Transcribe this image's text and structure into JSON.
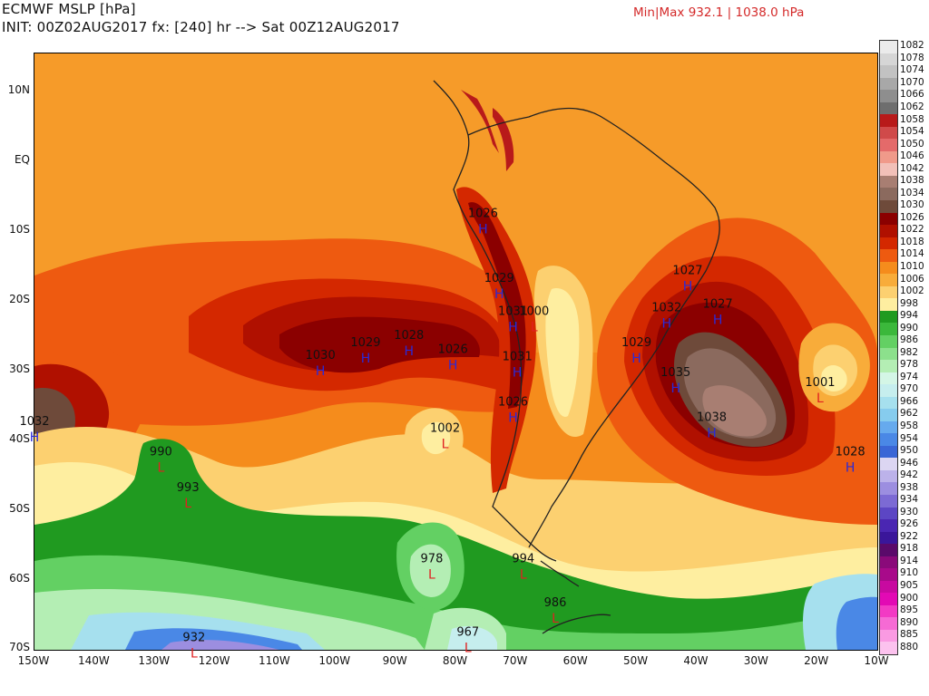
{
  "header": {
    "title": "ECMWF MSLP [hPa]",
    "init_line": "INIT: 00Z02AUG2017 fx: [240] hr --> Sat 00Z12AUG2017",
    "minmax": "Min|Max 932.1 | 1038.0 hPa"
  },
  "axes": {
    "y_ticks": [
      "10N",
      "EQ",
      "10S",
      "20S",
      "30S",
      "40S",
      "50S",
      "60S",
      "70S"
    ],
    "x_ticks": [
      "150W",
      "140W",
      "130W",
      "120W",
      "110W",
      "100W",
      "90W",
      "80W",
      "70W",
      "60W",
      "50W",
      "40W",
      "30W",
      "20W",
      "10W"
    ]
  },
  "colorbar": {
    "labels": [
      "1082",
      "1078",
      "1074",
      "1070",
      "1066",
      "1062",
      "1058",
      "1054",
      "1050",
      "1046",
      "1042",
      "1038",
      "1034",
      "1030",
      "1026",
      "1022",
      "1018",
      "1014",
      "1010",
      "1006",
      "1002",
      "998",
      "994",
      "990",
      "986",
      "982",
      "978",
      "974",
      "970",
      "966",
      "962",
      "958",
      "954",
      "950",
      "946",
      "942",
      "938",
      "934",
      "930",
      "926",
      "922",
      "918",
      "914",
      "910",
      "905",
      "900",
      "895",
      "890",
      "885",
      "880"
    ],
    "colors": [
      "#ebebeb",
      "#d6d6d6",
      "#c2c2c2",
      "#a8a8a8",
      "#8e8e8e",
      "#6e6e6e",
      "#b81a1a",
      "#d04a4a",
      "#e46a6a",
      "#f09a8a",
      "#f2c0b8",
      "#a87e72",
      "#8b6a5e",
      "#6e4a3a",
      "#8b0000",
      "#b01000",
      "#d42800",
      "#ee5a10",
      "#f58c1c",
      "#f8ac3a",
      "#fcd070",
      "#feeea0",
      "#209a20",
      "#3bb83b",
      "#63d063",
      "#8ce08c",
      "#b4eeb4",
      "#d4f6e6",
      "#c6eeee",
      "#a6e0ee",
      "#86ccee",
      "#66aaee",
      "#4a88e6",
      "#3a66d6",
      "#dcd6f2",
      "#bcb2ea",
      "#9c8ee0",
      "#7c6ad4",
      "#5c46c4",
      "#4a26b2",
      "#3a169a",
      "#5a0a6a",
      "#8a0a7a",
      "#a80a8a",
      "#c80aa0",
      "#e20ab4",
      "#f23ac4",
      "#f66ad4",
      "#fa9ae2",
      "#fcc2ee"
    ]
  },
  "centres": [
    {
      "type": "H",
      "value": "1026",
      "lon": -75.5,
      "lat": -9.0
    },
    {
      "type": "H",
      "value": "1029",
      "lon": -72.8,
      "lat": -18.3
    },
    {
      "type": "H",
      "value": "1031",
      "lon": -70.5,
      "lat": -23.0
    },
    {
      "type": "L",
      "value": "1000",
      "lon": -67.0,
      "lat": -23.0
    },
    {
      "type": "H",
      "value": "1030",
      "lon": -102.5,
      "lat": -29.3
    },
    {
      "type": "H",
      "value": "1029",
      "lon": -95.0,
      "lat": -27.5
    },
    {
      "type": "H",
      "value": "1028",
      "lon": -87.8,
      "lat": -26.5
    },
    {
      "type": "H",
      "value": "1026",
      "lon": -80.5,
      "lat": -28.5
    },
    {
      "type": "H",
      "value": "1031",
      "lon": -69.8,
      "lat": -29.5
    },
    {
      "type": "H",
      "value": "1026",
      "lon": -70.5,
      "lat": -36.0
    },
    {
      "type": "L",
      "value": "1002",
      "lon": -81.8,
      "lat": -39.8
    },
    {
      "type": "H",
      "value": "1027",
      "lon": -41.5,
      "lat": -17.2
    },
    {
      "type": "H",
      "value": "1032",
      "lon": -45.0,
      "lat": -22.5
    },
    {
      "type": "H",
      "value": "1027",
      "lon": -36.5,
      "lat": -22.0
    },
    {
      "type": "H",
      "value": "1029",
      "lon": -50.0,
      "lat": -27.5
    },
    {
      "type": "H",
      "value": "1035",
      "lon": -43.5,
      "lat": -31.8
    },
    {
      "type": "H",
      "value": "1038",
      "lon": -37.5,
      "lat": -38.2
    },
    {
      "type": "L",
      "value": "1001",
      "lon": -19.5,
      "lat": -33.2
    },
    {
      "type": "H",
      "value": "1028",
      "lon": -14.5,
      "lat": -43.2
    },
    {
      "type": "H",
      "value": "1032",
      "lon": -150.0,
      "lat": -38.8
    },
    {
      "type": "L",
      "value": "990",
      "lon": -129.0,
      "lat": -43.2
    },
    {
      "type": "L",
      "value": "993",
      "lon": -124.5,
      "lat": -48.3
    },
    {
      "type": "L",
      "value": "978",
      "lon": -84.0,
      "lat": -58.5
    },
    {
      "type": "L",
      "value": "994",
      "lon": -68.8,
      "lat": -58.5
    },
    {
      "type": "L",
      "value": "986",
      "lon": -63.5,
      "lat": -64.8
    },
    {
      "type": "L",
      "value": "932",
      "lon": -123.5,
      "lat": -69.8
    },
    {
      "type": "L",
      "value": "967",
      "lon": -78.0,
      "lat": -69.0
    }
  ],
  "colors": {
    "high_symbol": "#2a2ad8",
    "low_symbol": "#e02020",
    "land_outline": "#222222"
  }
}
